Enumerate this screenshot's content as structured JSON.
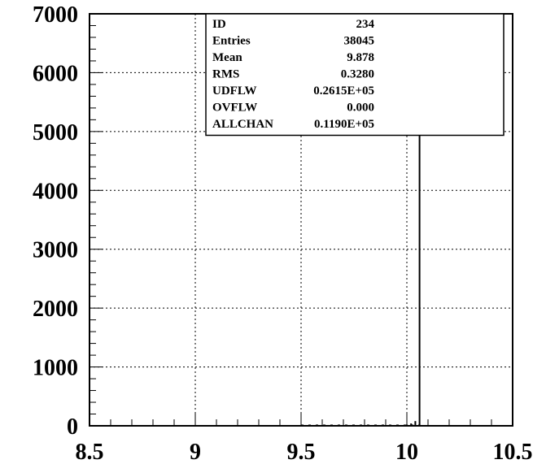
{
  "chart_data": {
    "type": "bar",
    "title": "",
    "xlabel": "",
    "ylabel": "",
    "xlim": [
      8.5,
      10.5
    ],
    "ylim": [
      0,
      7000
    ],
    "grid": true,
    "x_ticks": [
      8.5,
      9,
      9.5,
      10,
      10.5
    ],
    "x_tick_labels": [
      "8.5",
      "9",
      "9.5",
      "10",
      "10.5"
    ],
    "y_ticks": [
      0,
      1000,
      2000,
      3000,
      4000,
      5000,
      6000,
      7000
    ],
    "y_tick_labels": [
      "0",
      "1000",
      "2000",
      "3000",
      "4000",
      "5000",
      "6000",
      "7000"
    ],
    "series": [
      {
        "x": [
          9.5,
          9.6,
          9.7,
          9.8,
          9.9,
          10.0,
          10.02,
          10.04,
          10.06
        ],
        "values": [
          2,
          3,
          5,
          8,
          12,
          20,
          40,
          80,
          6420
        ]
      }
    ],
    "stats_box": {
      "position": "top-right",
      "rows": [
        {
          "label": "ID",
          "value": "234"
        },
        {
          "label": "Entries",
          "value": "38045"
        },
        {
          "label": "Mean",
          "value": "9.878"
        },
        {
          "label": "RMS",
          "value": "0.3280"
        },
        {
          "label": "UDFLW",
          "value": "0.2615E+05"
        },
        {
          "label": "OVFLW",
          "value": "0.000"
        },
        {
          "label": "ALLCHAN",
          "value": "0.1190E+05"
        }
      ]
    }
  }
}
